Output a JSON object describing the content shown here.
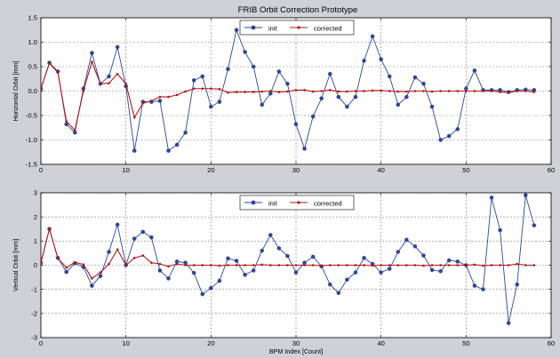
{
  "window": {
    "title": "FRIB Orbit Correction Prototype"
  },
  "colors": {
    "init": "#2a47a0",
    "corrected": "#b01818",
    "background": "#cfd1d6",
    "axes_bg": "#ffffff"
  },
  "icons": {
    "init_marker": "circle-marker-icon",
    "corrected_marker": "star-marker-icon"
  },
  "chart_data": [
    {
      "type": "line",
      "title": "FRIB Orbit Correction Prototype",
      "xlabel": "",
      "ylabel": "Horizontal Orbit [mm]",
      "xlim": [
        0,
        60
      ],
      "ylim": [
        -1.5,
        1.5
      ],
      "xticks": [
        "0",
        "10",
        "20",
        "30",
        "40",
        "50",
        "60"
      ],
      "yticks": [
        "-1.5",
        "-1.0",
        "-0.5",
        "0.0",
        "0.5",
        "1.0",
        "1.5"
      ],
      "grid": true,
      "legend": "top-center",
      "x": [
        0,
        1,
        2,
        3,
        4,
        5,
        6,
        7,
        8,
        9,
        10,
        11,
        12,
        13,
        14,
        15,
        16,
        17,
        18,
        19,
        20,
        21,
        22,
        23,
        24,
        25,
        26,
        27,
        28,
        29,
        30,
        31,
        32,
        33,
        34,
        35,
        36,
        37,
        38,
        39,
        40,
        41,
        42,
        43,
        44,
        45,
        46,
        47,
        48,
        49,
        50,
        51,
        52,
        53,
        54,
        55,
        56,
        57,
        58
      ],
      "series": [
        {
          "name": "init",
          "values": [
            0.05,
            0.58,
            0.4,
            -0.68,
            -0.85,
            0.05,
            0.78,
            0.15,
            0.3,
            0.9,
            0.1,
            -1.22,
            -0.22,
            -0.22,
            -0.2,
            -1.22,
            -1.1,
            -0.85,
            0.22,
            0.3,
            -0.32,
            -0.22,
            0.45,
            1.25,
            0.8,
            0.5,
            -0.28,
            -0.05,
            0.4,
            0.15,
            -0.68,
            -1.18,
            -0.52,
            -0.15,
            0.35,
            -0.12,
            -0.32,
            -0.12,
            0.62,
            1.12,
            0.65,
            0.3,
            -0.28,
            -0.12,
            0.28,
            0.15,
            -0.32,
            -1.0,
            -0.92,
            -0.78,
            0.05,
            0.42,
            0.02,
            0.02,
            0.02,
            -0.02,
            0.02,
            0.03,
            0.02
          ]
        },
        {
          "name": "corrected",
          "values": [
            0.05,
            0.57,
            0.38,
            -0.62,
            -0.8,
            0.0,
            0.6,
            0.15,
            0.16,
            0.35,
            0.15,
            -0.54,
            -0.25,
            -0.2,
            -0.12,
            -0.12,
            -0.08,
            -0.01,
            0.05,
            0.05,
            0.05,
            0.04,
            -0.03,
            -0.02,
            -0.02,
            -0.02,
            -0.01,
            0.0,
            -0.02,
            -0.01,
            0.02,
            0.02,
            -0.01,
            0.0,
            0.02,
            -0.01,
            -0.01,
            0.0,
            0.0,
            0.01,
            0.01,
            0.0,
            -0.01,
            -0.01,
            0.0,
            0.0,
            -0.01,
            0.0,
            0.0,
            0.0,
            0.0,
            0.0,
            0.0,
            0.0,
            -0.02,
            -0.03,
            0.0,
            0.0,
            -0.02
          ]
        }
      ]
    },
    {
      "type": "line",
      "title": "",
      "xlabel": "BPM Index [Count]",
      "ylabel": "Vertical Orbit [mm]",
      "xlim": [
        0,
        60
      ],
      "ylim": [
        -3,
        3
      ],
      "xticks": [
        "0",
        "10",
        "20",
        "30",
        "40",
        "50",
        "60"
      ],
      "yticks": [
        "-3",
        "-2",
        "-1",
        "0",
        "1",
        "2",
        "3"
      ],
      "grid": true,
      "legend": "top-center",
      "x": [
        0,
        1,
        2,
        3,
        4,
        5,
        6,
        7,
        8,
        9,
        10,
        11,
        12,
        13,
        14,
        15,
        16,
        17,
        18,
        19,
        20,
        21,
        22,
        23,
        24,
        25,
        26,
        27,
        28,
        29,
        30,
        31,
        32,
        33,
        34,
        35,
        36,
        37,
        38,
        39,
        40,
        41,
        42,
        43,
        44,
        45,
        46,
        47,
        48,
        49,
        50,
        51,
        52,
        53,
        54,
        55,
        56,
        57,
        58
      ],
      "series": [
        {
          "name": "init",
          "values": [
            0.1,
            1.5,
            0.3,
            -0.28,
            0.08,
            -0.08,
            -0.85,
            -0.45,
            0.55,
            1.68,
            0.0,
            1.1,
            1.38,
            1.15,
            -0.22,
            -0.55,
            0.15,
            0.1,
            -0.32,
            -1.2,
            -0.95,
            -0.65,
            0.28,
            0.18,
            -0.4,
            -0.22,
            0.6,
            1.25,
            0.7,
            0.38,
            -0.3,
            0.1,
            0.35,
            -0.05,
            -0.8,
            -1.15,
            -0.6,
            -0.3,
            0.3,
            0.05,
            -0.3,
            -0.15,
            0.55,
            1.05,
            0.78,
            0.4,
            -0.2,
            -0.25,
            0.2,
            0.15,
            0.0,
            -0.85,
            -1.0,
            2.8,
            1.45,
            -2.4,
            -0.8,
            2.9,
            1.65
          ]
        },
        {
          "name": "corrected",
          "values": [
            0.1,
            1.5,
            0.28,
            -0.1,
            0.12,
            0.03,
            -0.55,
            -0.3,
            0.05,
            0.65,
            0.0,
            0.3,
            0.4,
            0.1,
            0.05,
            -0.05,
            0.05,
            0.0,
            0.0,
            0.0,
            0.0,
            -0.02,
            0.0,
            0.0,
            0.0,
            0.0,
            0.02,
            0.0,
            0.0,
            0.0,
            0.0,
            0.0,
            0.0,
            -0.02,
            0.0,
            0.0,
            0.0,
            0.0,
            0.0,
            -0.02,
            0.0,
            0.0,
            0.0,
            0.0,
            0.0,
            -0.02,
            0.0,
            0.0,
            0.0,
            0.0,
            0.0,
            0.02,
            -0.02,
            0.0,
            0.0,
            0.0,
            0.05,
            0.0,
            0.0
          ]
        }
      ]
    }
  ]
}
